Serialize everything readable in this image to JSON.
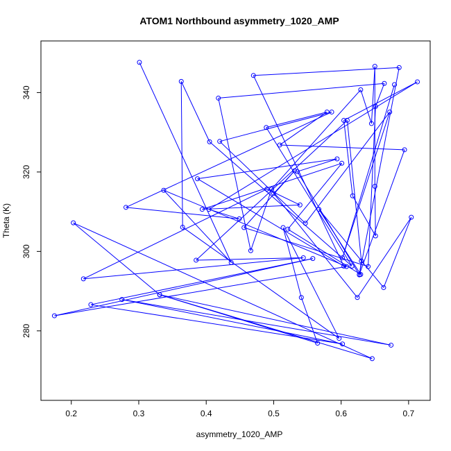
{
  "chart_data": {
    "type": "line",
    "title": "ATOM1 Northbound asymmetry_1020_AMP",
    "xlabel": "asymmetry_1020_AMP",
    "ylabel": "Theta (K)",
    "xlim": [
      0.155,
      0.732
    ],
    "ylim": [
      262.5,
      353.0
    ],
    "x_ticks": [
      0.2,
      0.3,
      0.4,
      0.5,
      0.6,
      0.7
    ],
    "y_ticks": [
      280,
      300,
      320,
      340
    ],
    "grid": false,
    "line_color": "#0000ff",
    "series": [
      {
        "points": [
          [
            0.301,
            347.6
          ],
          [
            0.437,
            297.2
          ],
          [
            0.337,
            315.4
          ],
          [
            0.608,
            296.2
          ],
          [
            0.175,
            283.8
          ],
          [
            0.558,
            298.2
          ],
          [
            0.229,
            286.6
          ],
          [
            0.602,
            276.7
          ],
          [
            0.275,
            287.9
          ],
          [
            0.674,
            276.4
          ],
          [
            0.331,
            289.1
          ],
          [
            0.646,
            273.0
          ],
          [
            0.203,
            307.2
          ],
          [
            0.331,
            289.1
          ],
          [
            0.565,
            276.9
          ],
          [
            0.541,
            288.4
          ],
          [
            0.514,
            306.0
          ],
          [
            0.597,
            278.1
          ],
          [
            0.365,
            306.1
          ],
          [
            0.363,
            342.8
          ],
          [
            0.405,
            327.6
          ],
          [
            0.616,
            296.3
          ],
          [
            0.489,
            331.2
          ],
          [
            0.579,
            335.1
          ],
          [
            0.509,
            326.8
          ],
          [
            0.694,
            325.6
          ],
          [
            0.627,
            294.2
          ],
          [
            0.686,
            346.3
          ],
          [
            0.47,
            344.3
          ],
          [
            0.604,
            296.3
          ],
          [
            0.387,
            318.3
          ],
          [
            0.594,
            323.3
          ],
          [
            0.535,
            320.1
          ],
          [
            0.627,
            294.1
          ],
          [
            0.63,
            297.6
          ],
          [
            0.609,
            333.0
          ],
          [
            0.385,
            297.8
          ],
          [
            0.544,
            298.4
          ],
          [
            0.218,
            293.1
          ],
          [
            0.49,
            315.7
          ],
          [
            0.539,
            311.7
          ],
          [
            0.394,
            310.6
          ],
          [
            0.601,
            322.2
          ],
          [
            0.521,
            305.6
          ],
          [
            0.629,
            294.2
          ],
          [
            0.567,
            310.6
          ],
          [
            0.663,
            290.9
          ],
          [
            0.704,
            308.6
          ],
          [
            0.624,
            288.4
          ],
          [
            0.5,
            314.6
          ],
          [
            0.531,
            320.3
          ],
          [
            0.456,
            306.0
          ],
          [
            0.64,
            296.2
          ],
          [
            0.651,
            336.5
          ],
          [
            0.664,
            342.3
          ],
          [
            0.418,
            338.6
          ],
          [
            0.466,
            300.2
          ],
          [
            0.497,
            315.7
          ],
          [
            0.629,
            340.7
          ],
          [
            0.645,
            332.2
          ],
          [
            0.65,
            346.6
          ],
          [
            0.65,
            316.4
          ],
          [
            0.651,
            303.9
          ],
          [
            0.617,
            314.0
          ],
          [
            0.604,
            333.0
          ],
          [
            0.713,
            342.7
          ],
          [
            0.404,
            310.6
          ],
          [
            0.449,
            308.2
          ],
          [
            0.281,
            311.1
          ],
          [
            0.586,
            335.1
          ],
          [
            0.42,
            327.7
          ],
          [
            0.547,
            307.1
          ],
          [
            0.672,
            335.1
          ],
          [
            0.602,
            298.4
          ],
          [
            0.679,
            342.0
          ]
        ]
      }
    ]
  }
}
